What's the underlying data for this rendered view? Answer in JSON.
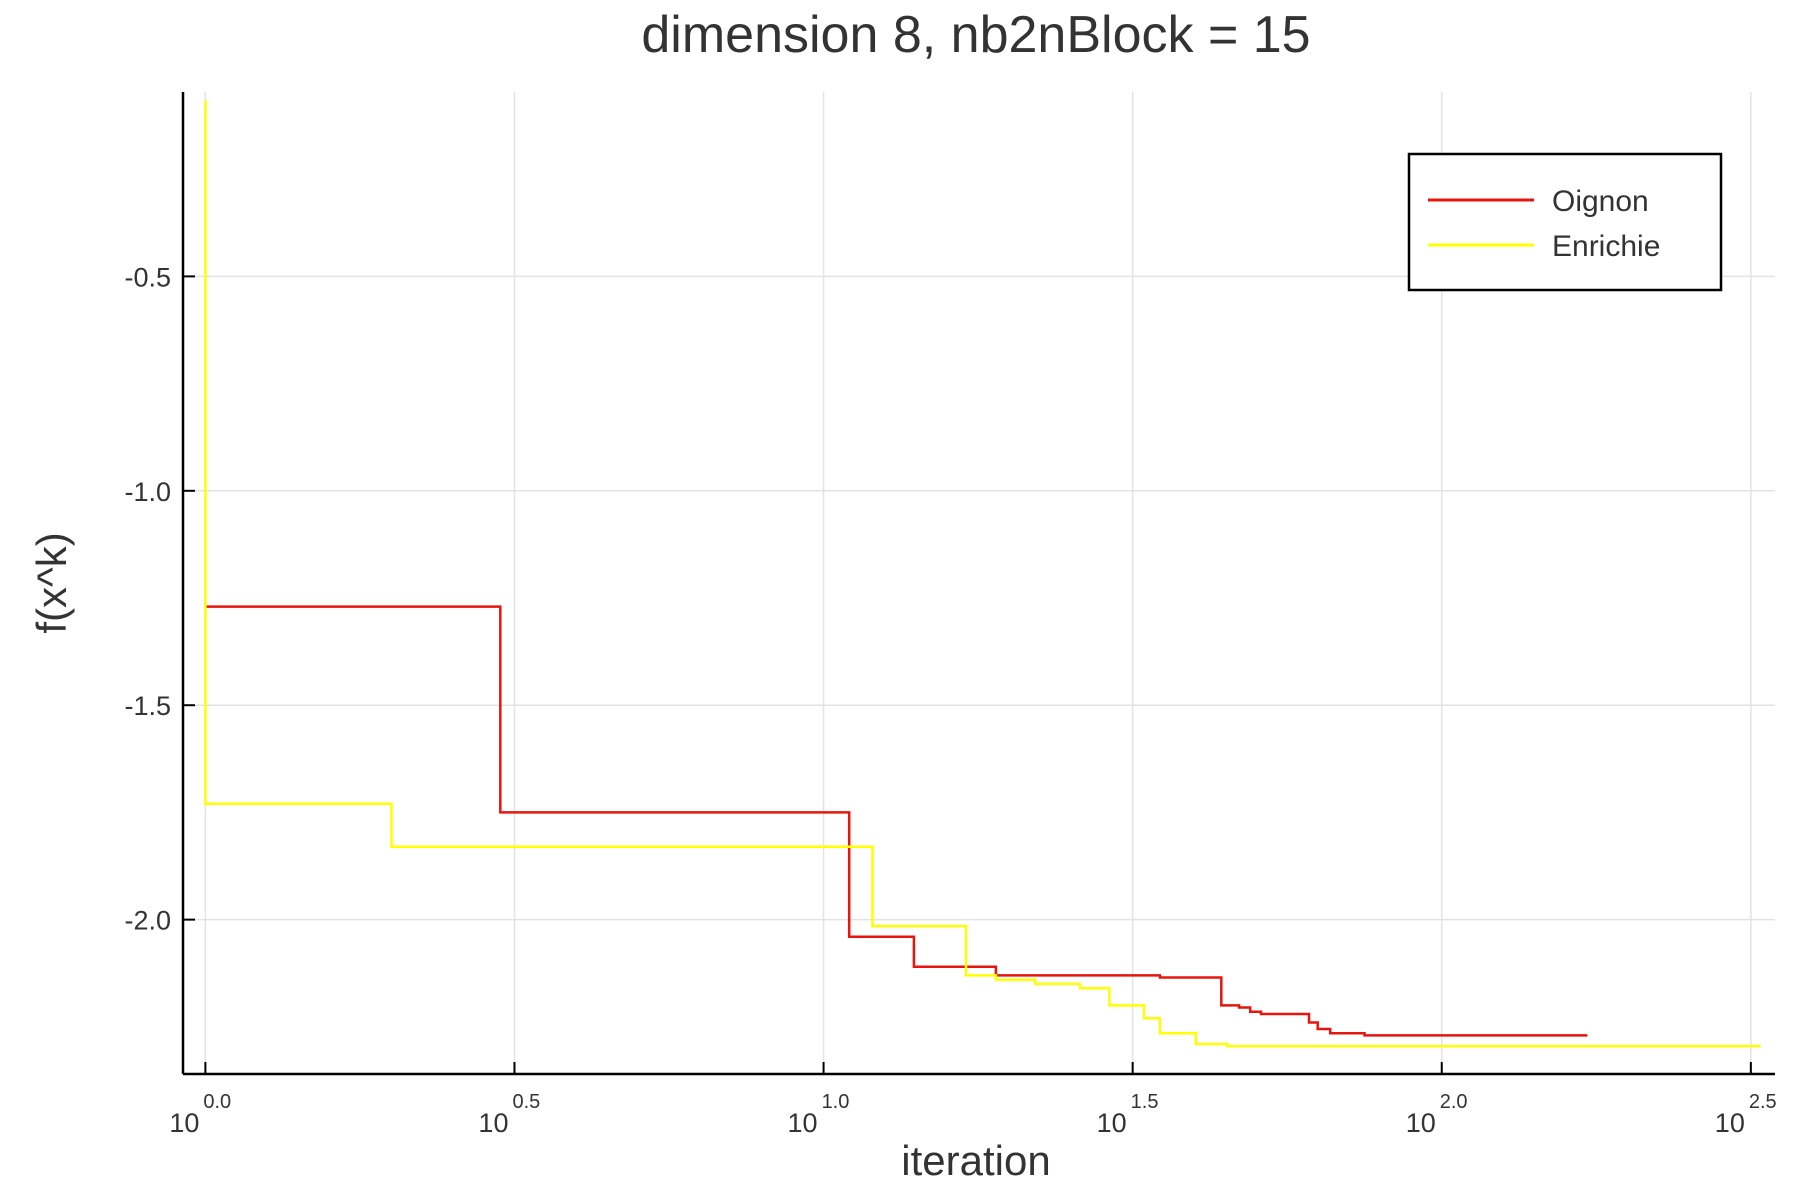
{
  "chart_data": {
    "type": "line",
    "step": true,
    "title": "dimension 8, nb2nBlock = 15",
    "xlabel": "iteration",
    "ylabel": "f(x^k)",
    "xscale": "log10",
    "xlim": [
      0.92,
      346
    ],
    "ylim": [
      -2.36,
      -0.07
    ],
    "grid": true,
    "legend": "top-right",
    "x_ticks": [
      {
        "base": "10",
        "exp": "0.0",
        "value": 1
      },
      {
        "base": "10",
        "exp": "0.5",
        "value": 3.1623
      },
      {
        "base": "10",
        "exp": "1.0",
        "value": 10
      },
      {
        "base": "10",
        "exp": "1.5",
        "value": 31.623
      },
      {
        "base": "10",
        "exp": "2.0",
        "value": 100
      },
      {
        "base": "10",
        "exp": "2.5",
        "value": 316.23
      }
    ],
    "y_ticks": [
      {
        "label": "-0.5",
        "value": -0.5
      },
      {
        "label": "-1.0",
        "value": -1.0
      },
      {
        "label": "-1.5",
        "value": -1.5
      },
      {
        "label": "-2.0",
        "value": -2.0
      }
    ],
    "series": [
      {
        "name": "Oignon",
        "color": "#e8150f",
        "points": [
          [
            1,
            -1.27
          ],
          [
            3,
            -1.27
          ],
          [
            3,
            -1.75
          ],
          [
            11,
            -1.75
          ],
          [
            11,
            -2.04
          ],
          [
            14,
            -2.04
          ],
          [
            14,
            -2.11
          ],
          [
            19,
            -2.11
          ],
          [
            19,
            -2.13
          ],
          [
            35,
            -2.13
          ],
          [
            35,
            -2.135
          ],
          [
            44,
            -2.135
          ],
          [
            44,
            -2.2
          ],
          [
            47,
            -2.2
          ],
          [
            47,
            -2.205
          ],
          [
            49,
            -2.205
          ],
          [
            49,
            -2.215
          ],
          [
            51,
            -2.215
          ],
          [
            51,
            -2.22
          ],
          [
            61,
            -2.22
          ],
          [
            61,
            -2.24
          ],
          [
            63,
            -2.24
          ],
          [
            63,
            -2.255
          ],
          [
            66,
            -2.255
          ],
          [
            66,
            -2.265
          ],
          [
            75,
            -2.265
          ],
          [
            75,
            -2.27
          ],
          [
            172,
            -2.27
          ]
        ]
      },
      {
        "name": "Enrichie",
        "color": "#ffff00",
        "points": [
          [
            1,
            -0.09
          ],
          [
            1,
            -1.73
          ],
          [
            2,
            -1.73
          ],
          [
            2,
            -1.83
          ],
          [
            12,
            -1.83
          ],
          [
            12,
            -2.015
          ],
          [
            17,
            -2.015
          ],
          [
            17,
            -2.13
          ],
          [
            19,
            -2.13
          ],
          [
            19,
            -2.14
          ],
          [
            22,
            -2.14
          ],
          [
            22,
            -2.15
          ],
          [
            26,
            -2.15
          ],
          [
            26,
            -2.16
          ],
          [
            29,
            -2.16
          ],
          [
            29,
            -2.2
          ],
          [
            33,
            -2.2
          ],
          [
            33,
            -2.23
          ],
          [
            35,
            -2.23
          ],
          [
            35,
            -2.265
          ],
          [
            40,
            -2.265
          ],
          [
            40,
            -2.29
          ],
          [
            45,
            -2.29
          ],
          [
            45,
            -2.295
          ],
          [
            328,
            -2.295
          ]
        ]
      }
    ]
  }
}
